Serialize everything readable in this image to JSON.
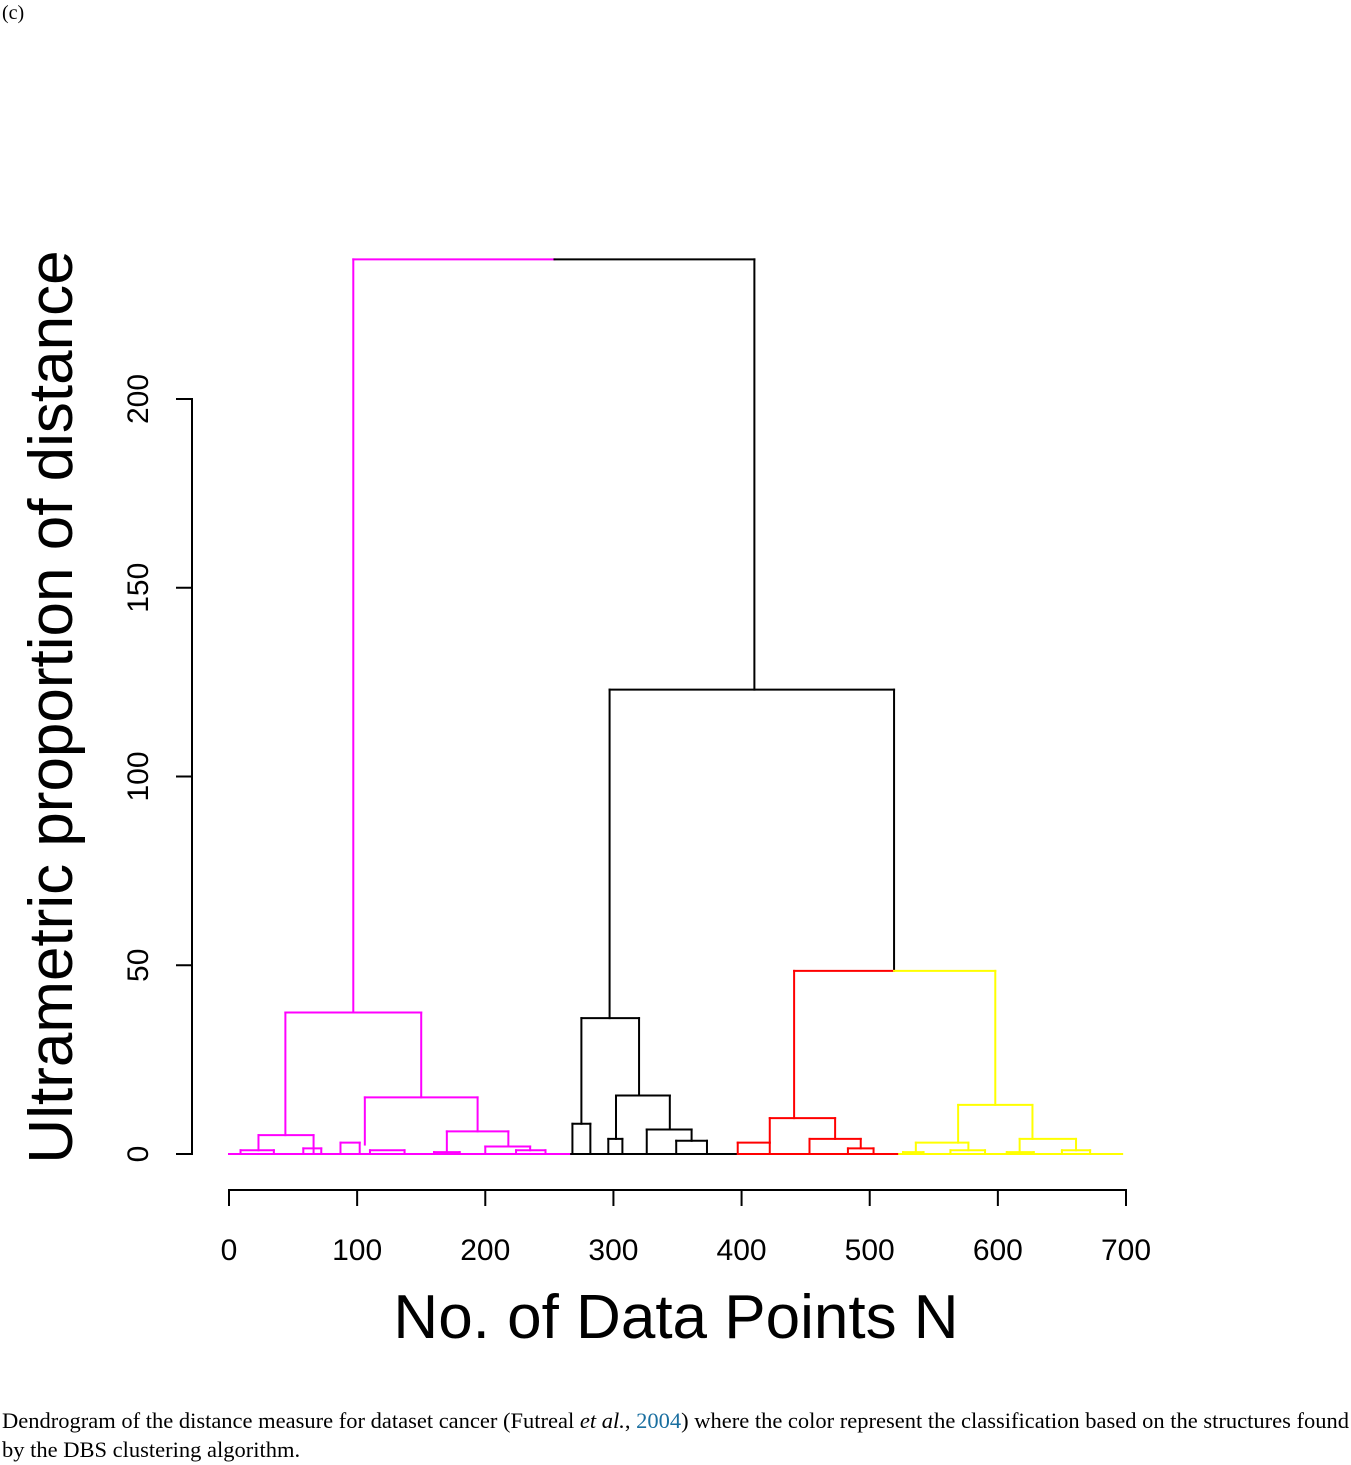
{
  "panel_label": "(c)",
  "caption": {
    "before": "Dendrogram of the distance measure for dataset cancer (Futreal ",
    "etal": "et al.",
    "comma": ", ",
    "year": "2004",
    "after": ") where the color represent the classification based on the structures found by the DBS clustering algorithm."
  },
  "chart_data": {
    "type": "dendrogram",
    "xlabel": "No. of Data Points N",
    "ylabel": "Ultrametric proportion of distance",
    "xlim": [
      0,
      700
    ],
    "ylim": [
      0,
      200
    ],
    "x_ticks": [
      0,
      100,
      200,
      300,
      400,
      500,
      600,
      700
    ],
    "y_ticks": [
      0,
      50,
      100,
      150,
      200
    ],
    "colors": {
      "magenta": "#ff00ff",
      "black": "#000000",
      "red": "#ff0000",
      "yellow": "#ffff00"
    },
    "clusters": [
      {
        "color": "magenta",
        "x_range": [
          0,
          267
        ]
      },
      {
        "color": "black",
        "x_range": [
          267,
          397
        ]
      },
      {
        "color": "red",
        "x_range": [
          397,
          523
        ]
      },
      {
        "color": "yellow",
        "x_range": [
          523,
          697
        ]
      }
    ],
    "merges": [
      {
        "left_x": 97,
        "right_x": 410,
        "height": 237,
        "left_color": "magenta",
        "right_color": "black",
        "split_x": 254,
        "left_from": 37.5,
        "right_from": 123
      },
      {
        "left_x": 297,
        "right_x": 519,
        "height": 123,
        "color": "black",
        "left_from": 36,
        "right_from": 48.5
      },
      {
        "left_x": 44,
        "right_x": 150,
        "height": 37.5,
        "color": "magenta",
        "left_from": 5,
        "right_from": 15
      },
      {
        "left_x": 106,
        "right_x": 194,
        "height": 15,
        "color": "magenta",
        "left_from": 2.5,
        "right_from": 6
      },
      {
        "left_x": 23,
        "right_x": 66,
        "height": 5,
        "color": "magenta",
        "left_from": 1,
        "right_from": 0.5
      },
      {
        "left_x": 170,
        "right_x": 218,
        "height": 6,
        "color": "magenta",
        "left_from": 0.5,
        "right_from": 2
      },
      {
        "left_x": 87,
        "right_x": 102,
        "height": 3,
        "color": "magenta",
        "left_from": 0,
        "right_from": 0
      },
      {
        "left_x": 9,
        "right_x": 35,
        "height": 1,
        "color": "magenta",
        "left_from": 0,
        "right_from": 0
      },
      {
        "left_x": 58,
        "right_x": 72,
        "height": 1.5,
        "color": "magenta",
        "left_from": 0,
        "right_from": 0
      },
      {
        "left_x": 200,
        "right_x": 235,
        "height": 2,
        "color": "magenta",
        "left_from": 0,
        "right_from": 1
      },
      {
        "left_x": 224,
        "right_x": 247,
        "height": 1,
        "color": "magenta",
        "left_from": 0,
        "right_from": 0
      },
      {
        "left_x": 110,
        "right_x": 137,
        "height": 1,
        "color": "magenta",
        "left_from": 0,
        "right_from": 0
      },
      {
        "left_x": 160,
        "right_x": 180,
        "height": 0.5,
        "color": "magenta",
        "left_from": 0,
        "right_from": 0
      },
      {
        "left_x": 275,
        "right_x": 320,
        "height": 36,
        "color": "black",
        "left_from": 8,
        "right_from": 15.5
      },
      {
        "left_x": 268,
        "right_x": 282,
        "height": 8,
        "color": "black",
        "left_from": 0,
        "right_from": 0
      },
      {
        "left_x": 302,
        "right_x": 344,
        "height": 15.5,
        "color": "black",
        "left_from": 4,
        "right_from": 6.5
      },
      {
        "left_x": 296,
        "right_x": 307,
        "height": 4,
        "color": "black",
        "left_from": 0,
        "right_from": 0
      },
      {
        "left_x": 326,
        "right_x": 361,
        "height": 6.5,
        "color": "black",
        "left_from": 0,
        "right_from": 3.5
      },
      {
        "left_x": 349,
        "right_x": 373,
        "height": 3.5,
        "color": "black",
        "left_from": 0,
        "right_from": 0
      },
      {
        "left_x": 441,
        "right_x": 598,
        "height": 48.5,
        "left_color": "red",
        "right_color": "yellow",
        "split_x": 519,
        "left_from": 9.5,
        "right_from": 13
      },
      {
        "left_x": 422,
        "right_x": 473,
        "height": 9.5,
        "color": "red",
        "left_from": 3,
        "right_from": 4
      },
      {
        "left_x": 397,
        "right_x": 422,
        "height": 3,
        "color": "red",
        "left_from": 0,
        "right_from": 0
      },
      {
        "left_x": 453,
        "right_x": 493,
        "height": 4,
        "color": "red",
        "left_from": 0,
        "right_from": 1.5
      },
      {
        "left_x": 483,
        "right_x": 503,
        "height": 1.5,
        "color": "red",
        "left_from": 0,
        "right_from": 0
      },
      {
        "left_x": 569,
        "right_x": 627,
        "height": 13,
        "color": "yellow",
        "left_from": 3,
        "right_from": 4
      },
      {
        "left_x": 536,
        "right_x": 577,
        "height": 3,
        "color": "yellow",
        "left_from": 0.5,
        "right_from": 1
      },
      {
        "left_x": 617,
        "right_x": 661,
        "height": 4,
        "color": "yellow",
        "left_from": 0.5,
        "right_from": 1
      },
      {
        "left_x": 526,
        "right_x": 542,
        "height": 0.5,
        "color": "yellow",
        "left_from": 0,
        "right_from": 0
      },
      {
        "left_x": 563,
        "right_x": 590,
        "height": 1,
        "color": "yellow",
        "left_from": 0,
        "right_from": 0
      },
      {
        "left_x": 607,
        "right_x": 628,
        "height": 0.5,
        "color": "yellow",
        "left_from": 0,
        "right_from": 0
      },
      {
        "left_x": 650,
        "right_x": 672,
        "height": 1,
        "color": "yellow",
        "left_from": 0,
        "right_from": 0
      }
    ]
  }
}
